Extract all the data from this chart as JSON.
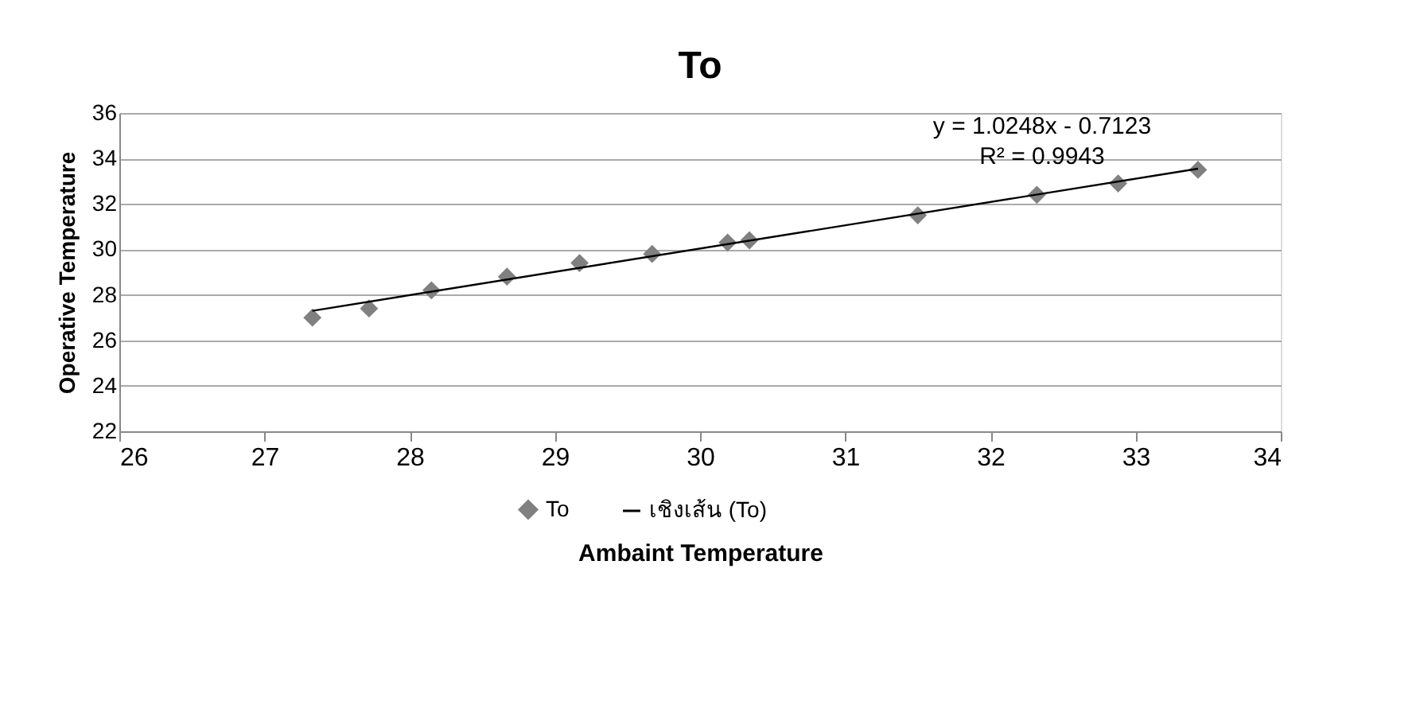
{
  "chart_data": {
    "type": "scatter",
    "title": "To",
    "xlabel": "Ambaint Temperature",
    "ylabel": "Operative Temperature",
    "xlim": [
      26,
      34
    ],
    "xticks": [
      26,
      27,
      28,
      29,
      30,
      31,
      32,
      33,
      34
    ],
    "ylim": [
      22,
      36
    ],
    "yticks": [
      22,
      24,
      26,
      28,
      30,
      32,
      34,
      36
    ],
    "grid": "y",
    "legend": "bottom",
    "annotations": [
      "y = 1.0248x - 0.7123",
      "R² = 0.9943"
    ],
    "series": [
      {
        "name": "To",
        "marker": "diamond",
        "color": "#808080",
        "x": [
          27.33,
          27.72,
          28.15,
          28.67,
          29.17,
          29.67,
          30.19,
          30.34,
          31.5,
          32.32,
          32.88,
          33.43
        ],
        "values": [
          27.0,
          27.4,
          28.2,
          28.8,
          29.4,
          29.8,
          30.3,
          30.4,
          31.5,
          32.4,
          32.9,
          33.5
        ]
      },
      {
        "name": "เชิงเส้น (To)",
        "type": "line",
        "marker": "none",
        "color": "#000000",
        "x": [
          27.33,
          33.43
        ],
        "values": [
          27.3,
          33.55
        ]
      }
    ]
  }
}
